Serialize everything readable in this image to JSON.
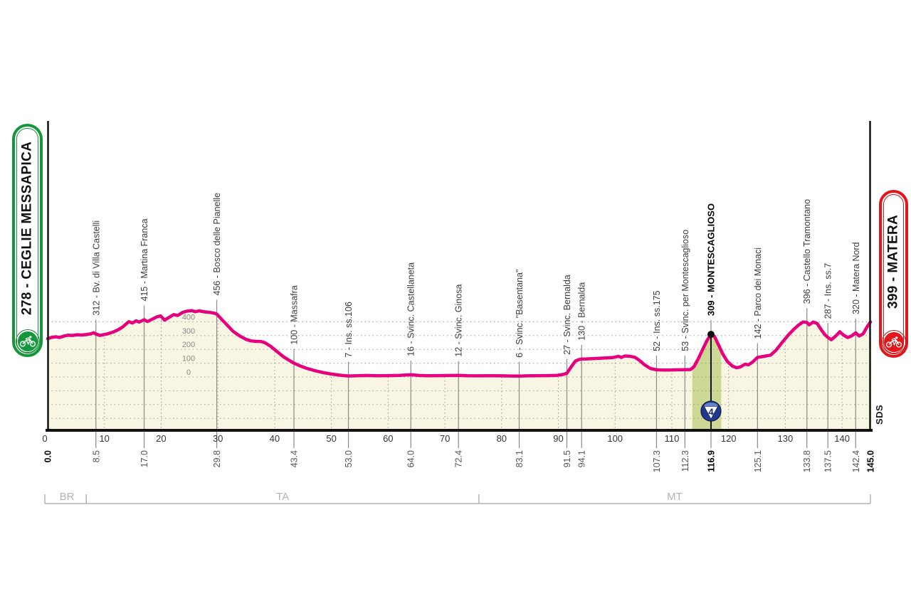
{
  "banners": {
    "start": {
      "label": "278 - CEGLIE MESSAPICA",
      "color": "#14973b"
    },
    "finish": {
      "label": "399 - MATERA",
      "color": "#e4151b"
    }
  },
  "branding": {
    "sds_label": "SDS"
  },
  "chart_data": {
    "type": "area",
    "x_axis": {
      "unit": "km",
      "total_km": 145,
      "ticks": [
        0,
        10,
        20,
        30,
        40,
        50,
        60,
        70,
        80,
        90,
        100,
        110,
        120,
        130,
        140
      ]
    },
    "y_axis": {
      "unit": "m",
      "ticks": [
        0,
        100,
        200,
        300,
        400
      ]
    },
    "start_point": {
      "km": 0.0,
      "elev": 278,
      "name": "CEGLIE MESSAPICA"
    },
    "finish_point": {
      "km": 145.0,
      "elev": 399,
      "name": "MATERA"
    },
    "waypoints": [
      {
        "km": 8.5,
        "elev": 312,
        "label": "312 - Bv. di Villa Castelli",
        "bold": false
      },
      {
        "km": 17.0,
        "elev": 415,
        "label": "415 - Martina Franca",
        "bold": false
      },
      {
        "km": 29.8,
        "elev": 456,
        "label": "456 - Bosco delle Pianelle",
        "bold": false
      },
      {
        "km": 43.4,
        "elev": 100,
        "label": "100 - Massafra",
        "bold": false
      },
      {
        "km": 53.0,
        "elev": 7,
        "label": "7 - Ins. ss.106",
        "bold": false
      },
      {
        "km": 64.0,
        "elev": 16,
        "label": "16 - Svinc. Castellaneta",
        "bold": false
      },
      {
        "km": 72.4,
        "elev": 12,
        "label": "12 - Svinc. Ginosa",
        "bold": false
      },
      {
        "km": 83.1,
        "elev": 6,
        "label": "6 - Svinc. \"Basentana\"",
        "bold": false
      },
      {
        "km": 91.5,
        "elev": 27,
        "label": "27 - Svinc. Bernalda",
        "bold": false
      },
      {
        "km": 94.1,
        "elev": 130,
        "label": "130 - Bernalda",
        "bold": false
      },
      {
        "km": 107.3,
        "elev": 52,
        "label": "52 - Ins. ss.175",
        "bold": false
      },
      {
        "km": 112.3,
        "elev": 53,
        "label": "53 - Svinc. per Montescaglioso",
        "bold": false
      },
      {
        "km": 116.9,
        "elev": 309,
        "label": "309 - MONTESCAGLIOSO",
        "bold": true
      },
      {
        "km": 125.1,
        "elev": 142,
        "label": "142 - Parco dei Monaci",
        "bold": false
      },
      {
        "km": 133.8,
        "elev": 396,
        "label": "396 - Castello Tramontano",
        "bold": false
      },
      {
        "km": 137.5,
        "elev": 287,
        "label": "287 - Ins. ss.7",
        "bold": false
      },
      {
        "km": 142.4,
        "elev": 320,
        "label": "320 - Matera Nord",
        "bold": false
      }
    ],
    "km_labels": [
      {
        "text": "0.0",
        "km": 0.0,
        "bold": true
      },
      {
        "text": "8.5",
        "km": 8.5,
        "bold": false
      },
      {
        "text": "17.0",
        "km": 17.0,
        "bold": false
      },
      {
        "text": "29.8",
        "km": 29.8,
        "bold": false
      },
      {
        "text": "43.4",
        "km": 43.4,
        "bold": false
      },
      {
        "text": "53.0",
        "km": 53.0,
        "bold": false
      },
      {
        "text": "64.0",
        "km": 64.0,
        "bold": false
      },
      {
        "text": "72.4",
        "km": 72.4,
        "bold": false
      },
      {
        "text": "83.1",
        "km": 83.1,
        "bold": false
      },
      {
        "text": "91.5",
        "km": 91.5,
        "bold": false
      },
      {
        "text": "94.1",
        "km": 94.1,
        "bold": false
      },
      {
        "text": "107.3",
        "km": 107.3,
        "bold": false
      },
      {
        "text": "112.3",
        "km": 112.3,
        "bold": false
      },
      {
        "text": "116.9",
        "km": 116.9,
        "bold": true
      },
      {
        "text": "125.1",
        "km": 125.1,
        "bold": false
      },
      {
        "text": "133.8",
        "km": 133.8,
        "bold": false
      },
      {
        "text": "137.5",
        "km": 137.5,
        "bold": false
      },
      {
        "text": "142.4",
        "km": 142.4,
        "bold": false
      },
      {
        "text": "145.0",
        "km": 145.0,
        "bold": true
      }
    ],
    "climbs": [
      {
        "category": 4,
        "summit_km": 116.9,
        "summit_elev": 309,
        "name": "MONTESCAGLIOSO",
        "shade_from_km": 113.6,
        "shade_to_km": 118.7
      }
    ],
    "provinces": [
      {
        "code": "BR",
        "from_km": 0,
        "to_km": 6.8
      },
      {
        "code": "TA",
        "from_km": 6.8,
        "to_km": 76.0
      },
      {
        "code": "MT",
        "from_km": 76.0,
        "to_km": 145
      }
    ],
    "profile": [
      [
        0,
        278
      ],
      [
        0.7,
        287
      ],
      [
        1.4,
        291
      ],
      [
        2.1,
        286
      ],
      [
        2.8,
        296
      ],
      [
        3.6,
        303
      ],
      [
        4.4,
        301
      ],
      [
        5.2,
        306
      ],
      [
        6,
        304
      ],
      [
        6.8,
        307
      ],
      [
        7.5,
        312
      ],
      [
        8.1,
        320
      ],
      [
        8.5,
        312
      ],
      [
        9.2,
        301
      ],
      [
        9.8,
        306
      ],
      [
        10.6,
        313
      ],
      [
        11.5,
        325
      ],
      [
        12.4,
        342
      ],
      [
        13.2,
        362
      ],
      [
        13.9,
        387
      ],
      [
        14.3,
        401
      ],
      [
        14.9,
        391
      ],
      [
        15.6,
        407
      ],
      [
        16.1,
        398
      ],
      [
        16.6,
        407
      ],
      [
        17,
        415
      ],
      [
        17.6,
        402
      ],
      [
        18.4,
        418
      ],
      [
        19.2,
        435
      ],
      [
        19.9,
        443
      ],
      [
        20.6,
        412
      ],
      [
        21.4,
        432
      ],
      [
        22.2,
        452
      ],
      [
        22.9,
        446
      ],
      [
        23.8,
        468
      ],
      [
        24.5,
        477
      ],
      [
        25.4,
        481
      ],
      [
        26,
        473
      ],
      [
        26.7,
        479
      ],
      [
        27.6,
        472
      ],
      [
        28.6,
        468
      ],
      [
        29.3,
        463
      ],
      [
        29.8,
        456
      ],
      [
        30.6,
        420
      ],
      [
        31.5,
        382
      ],
      [
        32.7,
        330
      ],
      [
        33.9,
        296
      ],
      [
        35,
        272
      ],
      [
        35.8,
        262
      ],
      [
        36.6,
        258
      ],
      [
        37.6,
        257
      ],
      [
        38.3,
        248
      ],
      [
        39.3,
        222
      ],
      [
        40.4,
        185
      ],
      [
        41.5,
        148
      ],
      [
        42.5,
        122
      ],
      [
        43.4,
        100
      ],
      [
        44.5,
        80
      ],
      [
        45.7,
        62
      ],
      [
        47,
        47
      ],
      [
        48.4,
        33
      ],
      [
        50,
        21
      ],
      [
        51.5,
        13
      ],
      [
        53,
        7
      ],
      [
        54.5,
        9
      ],
      [
        56,
        11
      ],
      [
        58,
        9
      ],
      [
        60,
        10
      ],
      [
        62,
        12
      ],
      [
        64,
        16
      ],
      [
        65.5,
        11
      ],
      [
        67,
        9
      ],
      [
        69,
        10
      ],
      [
        71,
        11
      ],
      [
        72.4,
        12
      ],
      [
        74,
        9
      ],
      [
        76,
        8
      ],
      [
        78,
        9
      ],
      [
        80,
        8
      ],
      [
        81.5,
        7
      ],
      [
        83.1,
        6
      ],
      [
        84.5,
        8
      ],
      [
        86,
        9
      ],
      [
        88,
        10
      ],
      [
        89.8,
        12
      ],
      [
        90.8,
        18
      ],
      [
        91.5,
        27
      ],
      [
        92.2,
        70
      ],
      [
        93,
        115
      ],
      [
        93.6,
        126
      ],
      [
        94.1,
        130
      ],
      [
        95,
        131
      ],
      [
        96.5,
        134
      ],
      [
        98,
        137
      ],
      [
        99.5,
        140
      ],
      [
        100.6,
        150
      ],
      [
        101.1,
        141
      ],
      [
        101.7,
        152
      ],
      [
        102.6,
        150
      ],
      [
        103.5,
        143
      ],
      [
        104.3,
        120
      ],
      [
        105.2,
        88
      ],
      [
        106.2,
        62
      ],
      [
        107.3,
        52
      ],
      [
        108.6,
        50
      ],
      [
        110,
        51
      ],
      [
        111.2,
        52
      ],
      [
        112.3,
        53
      ],
      [
        113.3,
        54
      ],
      [
        113.9,
        75
      ],
      [
        114.7,
        135
      ],
      [
        115.5,
        205
      ],
      [
        116.2,
        265
      ],
      [
        116.9,
        309
      ],
      [
        117.5,
        295
      ],
      [
        118.2,
        235
      ],
      [
        119,
        165
      ],
      [
        119.8,
        112
      ],
      [
        120.7,
        78
      ],
      [
        121.4,
        67
      ],
      [
        122.1,
        73
      ],
      [
        122.9,
        93
      ],
      [
        123.5,
        88
      ],
      [
        124.2,
        107
      ],
      [
        125.1,
        142
      ],
      [
        126.3,
        150
      ],
      [
        127.4,
        158
      ],
      [
        128.4,
        196
      ],
      [
        129.4,
        248
      ],
      [
        130.4,
        298
      ],
      [
        131.4,
        342
      ],
      [
        132.3,
        376
      ],
      [
        133.1,
        398
      ],
      [
        133.8,
        396
      ],
      [
        134.2,
        378
      ],
      [
        134.9,
        398
      ],
      [
        135.6,
        388
      ],
      [
        136.4,
        338
      ],
      [
        137,
        305
      ],
      [
        137.5,
        287
      ],
      [
        138.1,
        270
      ],
      [
        138.9,
        298
      ],
      [
        139.6,
        328
      ],
      [
        140.3,
        302
      ],
      [
        141,
        286
      ],
      [
        141.7,
        298
      ],
      [
        142.4,
        320
      ],
      [
        143,
        297
      ],
      [
        143.7,
        312
      ],
      [
        144.4,
        362
      ],
      [
        145,
        399
      ]
    ],
    "colors": {
      "profile_line": "#e6007d",
      "area_fill": "#f8f5e2",
      "climb_fill": "#ccd893",
      "grid": "#9c9c8c",
      "tick_line": "#8a8a8a",
      "axis": "#111111",
      "label_text": "#3c3c3c",
      "km_text": "#555555",
      "province_text": "#b3b3b3",
      "badge_blue": "#20398c"
    }
  }
}
